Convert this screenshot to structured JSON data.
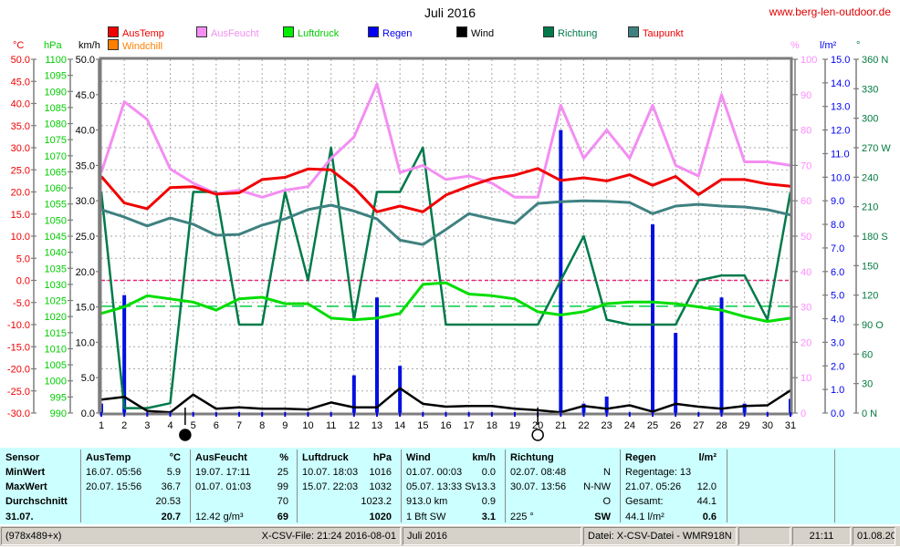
{
  "header": {
    "title": "Juli 2016",
    "website": "www.berg-len-outdoor.de"
  },
  "axis_headers": {
    "left": [
      {
        "label": "°C",
        "color": "#f00000"
      },
      {
        "label": "hPa",
        "color": "#00cc00"
      },
      {
        "label": "km/h",
        "color": "#000000"
      }
    ],
    "right": [
      {
        "label": "%",
        "color": "#ff8cff"
      },
      {
        "label": "l/m²",
        "color": "#0000f0"
      },
      {
        "label": "°",
        "color": "#007a3d"
      }
    ]
  },
  "legend": {
    "row1": [
      {
        "label": "AusTemp",
        "swatch": "#f00000",
        "text": "#f00000"
      },
      {
        "label": "AusFeucht",
        "swatch": "#f38ef3",
        "text": "#f38ef3"
      },
      {
        "label": "Luftdruck",
        "swatch": "#00ee00",
        "text": "#00cc00"
      },
      {
        "label": "Regen",
        "swatch": "#0000f0",
        "text": "#0000f0"
      },
      {
        "label": "Wind",
        "swatch": "#000000",
        "text": "#000000"
      },
      {
        "label": "Richtung",
        "swatch": "#007a4a",
        "text": "#007a4a"
      },
      {
        "label": "Taupunkt",
        "swatch": "#3f8181",
        "text": "#f00000"
      }
    ],
    "row2": [
      {
        "label": "Windchill",
        "swatch": "#ff8000",
        "text": "#ff8000"
      }
    ]
  },
  "chart_data": {
    "type": "line",
    "title": "Juli 2016",
    "x_labels": [
      "1",
      "2",
      "3",
      "4",
      "5",
      "6",
      "7",
      "8",
      "9",
      "10",
      "11",
      "12",
      "13",
      "14",
      "15",
      "16",
      "17",
      "18",
      "19",
      "20",
      "21",
      "22",
      "23",
      "24",
      "25",
      "26",
      "27",
      "28",
      "29",
      "30",
      "31"
    ],
    "axes": {
      "c": {
        "unit": "°C",
        "min": -30,
        "max": 50,
        "ticks": [
          "50.0",
          "45.0",
          "40.0",
          "35.0",
          "30.0",
          "25.0",
          "20.0",
          "15.0",
          "10.0",
          "5.0",
          "0.0",
          "-5.0",
          "-10.0",
          "-15.0",
          "-20.0",
          "-25.0",
          "-30.0"
        ]
      },
      "hpa": {
        "unit": "hPa",
        "min": 990,
        "max": 1100,
        "ticks": [
          "1100",
          "1095",
          "1090",
          "1085",
          "1080",
          "1075",
          "1070",
          "1065",
          "1060",
          "1055",
          "1050",
          "1045",
          "1040",
          "1035",
          "1030",
          "1025",
          "1020",
          "1015",
          "1010",
          "1005",
          "1000",
          "995",
          "990"
        ]
      },
      "kmh": {
        "unit": "km/h",
        "min": 0,
        "max": 50,
        "ticks": [
          "50.0",
          "45.0",
          "40.0",
          "35.0",
          "30.0",
          "25.0",
          "20.0",
          "15.0",
          "10.0",
          "5.0",
          "0.0"
        ]
      },
      "pct": {
        "unit": "%",
        "min": 0,
        "max": 100,
        "ticks": [
          "100",
          "90",
          "80",
          "70",
          "60",
          "50",
          "40",
          "30",
          "20",
          "10",
          "0"
        ]
      },
      "lm2": {
        "unit": "l/m²",
        "min": 0,
        "max": 15,
        "ticks": [
          "15.0",
          "14.0",
          "13.0",
          "12.0",
          "11.0",
          "10.0",
          "9.0",
          "8.0",
          "7.0",
          "6.0",
          "5.0",
          "4.0",
          "3.0",
          "2.0",
          "1.0",
          "0.0"
        ]
      },
      "deg": {
        "unit": "°",
        "min": 0,
        "max": 360,
        "ticks": [
          "360 N",
          "330",
          "300",
          "270 W",
          "240",
          "210",
          "180 S",
          "150",
          "120",
          "90 O",
          "60",
          "30",
          "0 N"
        ]
      }
    },
    "series": [
      {
        "name": "Richtung",
        "axis": "deg",
        "color": "#007a4a",
        "width": 2.5,
        "values": [
          225,
          5,
          5,
          10,
          225,
          225,
          90,
          90,
          225,
          135,
          270,
          95,
          225,
          225,
          270,
          90,
          90,
          90,
          90,
          90,
          135,
          180,
          95,
          90,
          90,
          90,
          135,
          140,
          140,
          95,
          225
        ]
      },
      {
        "name": "Luftdruck",
        "axis": "hpa",
        "color": "#00dd00",
        "width": 3,
        "values": [
          1021,
          1023,
          1026.5,
          1025.5,
          1024.5,
          1022,
          1025.5,
          1026,
          1024,
          1024,
          1019.5,
          1019,
          1019.5,
          1021,
          1030,
          1030.5,
          1027,
          1026.5,
          1025.5,
          1021.5,
          1020.5,
          1021.5,
          1024,
          1024.5,
          1024.5,
          1024,
          1023,
          1022,
          1020,
          1018.5,
          1019.5
        ]
      },
      {
        "name": "Taupunkt",
        "axis": "c",
        "color": "#3f8181",
        "width": 3,
        "values": [
          16.0,
          14.3,
          12.3,
          14.1,
          12.7,
          10.2,
          10.4,
          12.5,
          13.9,
          16.0,
          17.0,
          15.7,
          13.9,
          9.1,
          8.1,
          11.5,
          15.1,
          13.9,
          12.9,
          17.4,
          17.8,
          18.0,
          17.9,
          17.6,
          15.1,
          16.8,
          17.2,
          16.8,
          16.6,
          16.0,
          14.8
        ]
      },
      {
        "name": "AusFeucht",
        "axis": "pct",
        "color": "#f38ef3",
        "width": 3,
        "values": [
          68,
          88,
          83,
          69,
          65,
          62,
          63,
          61,
          63,
          64,
          72,
          78,
          93,
          68,
          70,
          66,
          67,
          65,
          61,
          61,
          87,
          72,
          80,
          72,
          87,
          70,
          67,
          90,
          71,
          71,
          70
        ]
      },
      {
        "name": "AusTemp",
        "axis": "c",
        "color": "#f00000",
        "width": 3,
        "values": [
          23.5,
          17.5,
          16.2,
          21.0,
          21.2,
          19.5,
          19.8,
          22.8,
          23.3,
          25.2,
          25.0,
          21.0,
          15.5,
          16.8,
          15.5,
          19.3,
          21.3,
          23.0,
          23.8,
          25.3,
          22.6,
          23.2,
          22.5,
          23.9,
          21.5,
          23.5,
          19.4,
          22.8,
          22.8,
          21.8,
          21.3
        ]
      },
      {
        "name": "Wind",
        "axis": "kmh",
        "color": "#000000",
        "width": 2.5,
        "values": [
          1.9,
          2.3,
          0.3,
          0.1,
          2.6,
          0.6,
          0.8,
          0.6,
          0.6,
          0.5,
          1.5,
          0.8,
          0.8,
          3.5,
          1.3,
          0.9,
          1.0,
          1.0,
          0.6,
          0.4,
          0.1,
          1.0,
          0.6,
          1.1,
          0.2,
          1.3,
          0.9,
          0.6,
          1.0,
          1.1,
          3.2
        ]
      }
    ],
    "bars": {
      "name": "Regen",
      "axis": "lm2",
      "color": "#0010e0",
      "values": [
        0.4,
        5.0,
        0,
        0,
        0,
        0,
        0,
        0,
        0,
        0,
        0,
        1.6,
        4.9,
        2.0,
        0,
        0,
        0,
        0,
        0,
        0,
        12.0,
        0.4,
        0.7,
        0,
        8.0,
        3.4,
        0,
        4.9,
        0.4,
        0,
        0.6
      ]
    },
    "reference_lines": [
      {
        "name": "zero-celsius-line",
        "axis": "c",
        "value": 0,
        "color": "#ee2277",
        "dash": "4,3"
      },
      {
        "name": "avg-pressure-line",
        "axis": "hpa",
        "value": 1023.2,
        "color": "#00cc44",
        "dash": "13,6"
      }
    ],
    "moon_markers": [
      {
        "day": 4.65,
        "phase": "new"
      },
      {
        "day": 20.0,
        "phase": "full"
      }
    ],
    "grid": true,
    "legend_position": "top"
  },
  "table": {
    "row_labels": [
      "Sensor",
      "MinWert",
      "MaxWert",
      "Durchschnitt",
      "31.07."
    ],
    "columns": [
      {
        "name": "AusTemp",
        "unit": "°C",
        "rows": [
          [
            "16.07.  05:56",
            "5.9"
          ],
          [
            "20.07.  15:56",
            "36.7"
          ],
          [
            "",
            "20.53"
          ],
          [
            "",
            "20.7"
          ]
        ]
      },
      {
        "name": "AusFeucht",
        "unit": "%",
        "rows": [
          [
            "19.07.  17:11",
            "25"
          ],
          [
            "01.07.  01:03",
            "99"
          ],
          [
            "",
            "70"
          ],
          [
            "12.42 g/m³",
            "69"
          ]
        ]
      },
      {
        "name": "Luftdruck",
        "unit": "hPa",
        "rows": [
          [
            "10.07.  18:03",
            "1016"
          ],
          [
            "15.07.  22:03",
            "1032"
          ],
          [
            "",
            "1023.2"
          ],
          [
            "",
            "1020"
          ]
        ]
      },
      {
        "name": "Wind",
        "unit": "km/h",
        "rows": [
          [
            "01.07.  00:03",
            "0.0"
          ],
          [
            "05.07.  13:33 SW",
            "13.3"
          ],
          [
            "913.0 km",
            "0.9"
          ],
          [
            "1 Bft SW",
            "3.1"
          ]
        ]
      },
      {
        "name": "Richtung",
        "unit": "",
        "rows": [
          [
            "02.07.  08:48",
            "N"
          ],
          [
            "30.07.  13:56",
            "N-NW"
          ],
          [
            "",
            "O"
          ],
          [
            "225 °",
            "SW"
          ]
        ]
      },
      {
        "name": "Regen",
        "unit": "l/m²",
        "rows": [
          [
            "Regentage: 13",
            ""
          ],
          [
            "21.07.  05:26",
            "12.0"
          ],
          [
            "Gesamt:",
            "44.1"
          ],
          [
            "44.1 l/m²",
            "0.6"
          ]
        ]
      },
      {
        "name": "",
        "unit": "",
        "rows": [
          [
            "",
            ""
          ],
          [
            "",
            ""
          ],
          [
            "",
            ""
          ],
          [
            "",
            ""
          ]
        ]
      },
      {
        "name": "",
        "unit": "",
        "rows": [
          [
            "",
            ""
          ],
          [
            "",
            ""
          ],
          [
            "",
            ""
          ],
          [
            "",
            ""
          ]
        ]
      }
    ]
  },
  "statusbar": {
    "size_info": "(978x489+x)",
    "csv_info": "X-CSV-File:  21:24  2016-08-01",
    "month": "Juli 2016",
    "file_info": "Datei: X-CSV-Datei - WMR918N",
    "spare": "",
    "time": "21:11",
    "date": "01.08.2016"
  }
}
